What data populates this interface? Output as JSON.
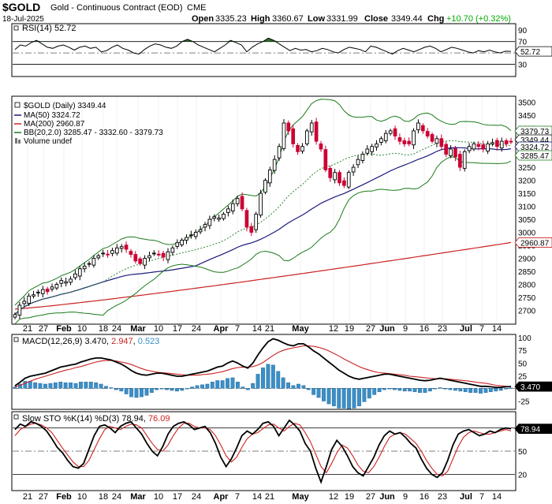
{
  "header": {
    "symbol": "$GOLD",
    "name": "Gold - Continuous Contract (EOD)",
    "exchange": "CME",
    "date": "18-Jul-2025",
    "open_label": "Open",
    "open": "3335.23",
    "high_label": "High",
    "high": "3360.67",
    "low_label": "Low",
    "low": "3331.99",
    "close_label": "Close",
    "close": "3349.44",
    "chg_label": "Chg",
    "chg": "+10.70 (+0.32%)",
    "chg_color": "#00aa00"
  },
  "colors": {
    "candle_up": "#000000",
    "candle_down": "#cc0033",
    "ma50": "#1a1a7a",
    "ma200": "#cc2222",
    "bollinger": "#1b7a1b",
    "bollinger_mid": "#1b7a1b",
    "rsi_line": "#000000",
    "rsi_fill": "#2d6b2d",
    "macd_line": "#000000",
    "macd_signal": "#cc2222",
    "macd_hist": "#3a8fc8",
    "sto_k": "#000000",
    "sto_d": "#cc2222",
    "tag_fill": "#ffffff"
  },
  "legend": {
    "price": "$GOLD (Daily) 3349.44",
    "ma50": "MA(50) 3324.72",
    "ma200": "MA(200) 2960.87",
    "bb": "BB(20,2.0) 3285.47 - 3332.60 - 3379.73",
    "volume": "Volume undef"
  },
  "x_labels": [
    "21",
    "27",
    "Feb",
    "10",
    "18",
    "24",
    "Mar",
    "10",
    "17",
    "24",
    "Apr",
    "7",
    "14",
    "21",
    "May",
    "12",
    "19",
    "27",
    "Jun",
    "9",
    "16",
    "23",
    "Jul",
    "7",
    "14"
  ],
  "x_label_bold": [
    false,
    false,
    true,
    false,
    false,
    false,
    true,
    false,
    false,
    false,
    true,
    false,
    false,
    false,
    true,
    false,
    false,
    false,
    true,
    false,
    false,
    false,
    true,
    false,
    false
  ],
  "chart_data": [
    {
      "type": "line",
      "title": "RSI(14) 52.72",
      "ylim": [
        10,
        100
      ],
      "yticks": [
        "90",
        "70",
        "50",
        "30"
      ],
      "ytick_values": [
        90,
        70,
        50,
        30
      ],
      "current_tag": "52.72",
      "current_value": 52.72,
      "series": [
        {
          "name": "RSI(14)",
          "values": [
            56,
            64,
            62,
            68,
            72,
            66,
            60,
            58,
            62,
            64,
            60,
            55,
            60,
            62,
            58,
            60,
            52,
            54,
            60,
            64,
            58,
            55,
            50,
            48,
            56,
            62,
            66,
            64,
            60,
            58,
            62,
            70,
            74,
            70,
            64,
            60,
            56,
            52,
            58,
            64,
            72,
            68,
            64,
            52,
            60,
            66,
            70,
            76,
            72,
            66,
            60,
            54,
            58,
            55,
            56,
            52,
            54,
            58,
            56,
            52,
            50,
            56,
            60,
            58,
            56,
            52,
            62,
            60,
            56,
            52,
            48,
            54,
            58,
            55,
            52,
            56,
            60,
            62,
            58,
            52,
            56,
            60,
            58,
            55,
            52,
            50,
            54,
            52,
            55,
            52,
            50,
            53,
            52.72
          ]
        }
      ]
    },
    {
      "type": "candlestick",
      "title": "$GOLD (Daily) 3349.44",
      "ylim": [
        2650,
        3520
      ],
      "yticks": [
        "3500",
        "3450",
        "3400",
        "3350",
        "3300",
        "3250",
        "3200",
        "3150",
        "3100",
        "3050",
        "3000",
        "2950",
        "2900",
        "2850",
        "2800",
        "2750",
        "2700"
      ],
      "ytick_values": [
        3500,
        3450,
        3400,
        3350,
        3300,
        3250,
        3200,
        3150,
        3100,
        3050,
        3000,
        2950,
        2900,
        2850,
        2800,
        2750,
        2700
      ],
      "price_tags": [
        {
          "label": "3379.73",
          "value": 3379.73,
          "series": "BB upper"
        },
        {
          "label": "3349.44",
          "value": 3349.44,
          "series": "close"
        },
        {
          "label": "3324.72",
          "value": 3324.72,
          "series": "MA(50)"
        },
        {
          "label": "3285.47",
          "value": 3285.47,
          "series": "BB lower"
        },
        {
          "label": "2960.87",
          "value": 2960.87,
          "series": "MA(200)"
        }
      ],
      "close": [
        2684,
        2720,
        2735,
        2755,
        2760,
        2770,
        2780,
        2772,
        2790,
        2800,
        2815,
        2810,
        2820,
        2840,
        2860,
        2870,
        2880,
        2900,
        2910,
        2920,
        2915,
        2930,
        2940,
        2945,
        2935,
        2915,
        2890,
        2880,
        2900,
        2910,
        2920,
        2915,
        2905,
        2925,
        2940,
        2960,
        2970,
        2980,
        2990,
        3000,
        3010,
        3030,
        3050,
        3060,
        3055,
        3070,
        3090,
        3110,
        3130,
        3090,
        3020,
        3000,
        3070,
        3150,
        3200,
        3240,
        3280,
        3330,
        3420,
        3390,
        3340,
        3310,
        3330,
        3390,
        3420,
        3350,
        3320,
        3240,
        3210,
        3230,
        3190,
        3180,
        3230,
        3250,
        3280,
        3300,
        3320,
        3330,
        3340,
        3360,
        3380,
        3390,
        3370,
        3350,
        3340,
        3340,
        3390,
        3420,
        3390,
        3370,
        3350,
        3360,
        3330,
        3300,
        3320,
        3290,
        3250,
        3310,
        3330,
        3340,
        3330,
        3320,
        3340,
        3345,
        3330,
        3350,
        3340,
        3349
      ]
    },
    {
      "type": "line",
      "title": "MACD(12,26,9) 3.470, 2.947, 0.523",
      "macd_value": "3.470",
      "signal_value": "2.947",
      "hist_value": "0.523",
      "ylim": [
        -40,
        105
      ],
      "yticks": [
        "100",
        "75",
        "50",
        "25",
        "0",
        "-25"
      ],
      "ytick_values": [
        100,
        75,
        50,
        25,
        0,
        -25
      ],
      "current_tag": "3.470",
      "current_value": 3.47,
      "series": [
        {
          "name": "MACD",
          "values": [
            5,
            12,
            20,
            24,
            26,
            28,
            30,
            34,
            38,
            42,
            44,
            46,
            48,
            52,
            55,
            58,
            60,
            60,
            58,
            56,
            52,
            48,
            42,
            35,
            30,
            27,
            26,
            28,
            30,
            30,
            28,
            26,
            24,
            24,
            26,
            28,
            30,
            32,
            34,
            38,
            42,
            44,
            50,
            54,
            50,
            44,
            40,
            50,
            66,
            80,
            92,
            98,
            95,
            90,
            86,
            84,
            88,
            88,
            82,
            74,
            68,
            60,
            52,
            44,
            36,
            30,
            24,
            20,
            18,
            20,
            22,
            24,
            26,
            28,
            28,
            26,
            24,
            22,
            20,
            18,
            16,
            15,
            16,
            18,
            20,
            18,
            16,
            14,
            12,
            10,
            8,
            6,
            4,
            4,
            3,
            2,
            2,
            3,
            3.47
          ]
        },
        {
          "name": "Signal",
          "values": [
            3,
            6,
            10,
            14,
            18,
            21,
            24,
            27,
            30,
            33,
            36,
            38,
            41,
            43,
            46,
            49,
            52,
            54,
            55,
            55,
            54,
            52,
            50,
            47,
            43,
            39,
            36,
            34,
            32,
            31,
            30,
            29,
            28,
            27,
            26,
            26,
            26,
            27,
            28,
            29,
            31,
            33,
            36,
            39,
            41,
            42,
            42,
            43,
            46,
            51,
            58,
            65,
            71,
            75,
            78,
            80,
            82,
            84,
            84,
            83,
            81,
            78,
            74,
            69,
            64,
            58,
            53,
            48,
            43,
            39,
            36,
            33,
            31,
            30,
            29,
            28,
            27,
            26,
            24,
            23,
            22,
            21,
            20,
            19,
            19,
            19,
            18,
            17,
            16,
            15,
            14,
            12,
            11,
            10,
            8,
            6,
            5,
            4,
            2.947
          ]
        }
      ]
    },
    {
      "type": "line",
      "title": "Slow STO %K(14) %D(3) 78.94, 76.09",
      "k_value": "78.94",
      "d_value": "76.09",
      "ylim": [
        0,
        100
      ],
      "yticks": [
        "80",
        "50",
        "20"
      ],
      "ytick_values": [
        80,
        50,
        20
      ],
      "current_tag": "78.94",
      "current_value": 78.94,
      "series": [
        {
          "name": "%K",
          "values": [
            78,
            85,
            82,
            88,
            86,
            82,
            76,
            66,
            55,
            48,
            38,
            30,
            28,
            34,
            52,
            70,
            82,
            84,
            80,
            74,
            82,
            86,
            88,
            80,
            72,
            60,
            50,
            44,
            56,
            72,
            82,
            86,
            88,
            84,
            78,
            80,
            82,
            74,
            60,
            42,
            30,
            40,
            54,
            70,
            76,
            72,
            78,
            86,
            88,
            82,
            70,
            80,
            90,
            84,
            76,
            60,
            50,
            28,
            10,
            30,
            52,
            64,
            56,
            44,
            30,
            22,
            18,
            30,
            42,
            58,
            70,
            76,
            72,
            74,
            68,
            60,
            54,
            40,
            28,
            20,
            16,
            22,
            38,
            58,
            72,
            76,
            78,
            74,
            70,
            72,
            76,
            74,
            78,
            80,
            78.94
          ]
        },
        {
          "name": "%D",
          "values": [
            70,
            78,
            82,
            85,
            86,
            84,
            80,
            74,
            64,
            54,
            45,
            36,
            30,
            30,
            38,
            52,
            66,
            78,
            82,
            80,
            78,
            82,
            85,
            84,
            80,
            70,
            60,
            52,
            50,
            58,
            70,
            80,
            86,
            86,
            82,
            80,
            80,
            78,
            70,
            58,
            44,
            36,
            42,
            55,
            66,
            72,
            74,
            79,
            84,
            85,
            80,
            76,
            82,
            86,
            84,
            74,
            62,
            46,
            30,
            22,
            34,
            48,
            58,
            54,
            44,
            32,
            24,
            22,
            30,
            42,
            56,
            68,
            72,
            74,
            72,
            66,
            60,
            50,
            38,
            28,
            20,
            18,
            24,
            40,
            56,
            68,
            74,
            76,
            74,
            72,
            72,
            74,
            76,
            78,
            76.09
          ]
        }
      ]
    }
  ]
}
